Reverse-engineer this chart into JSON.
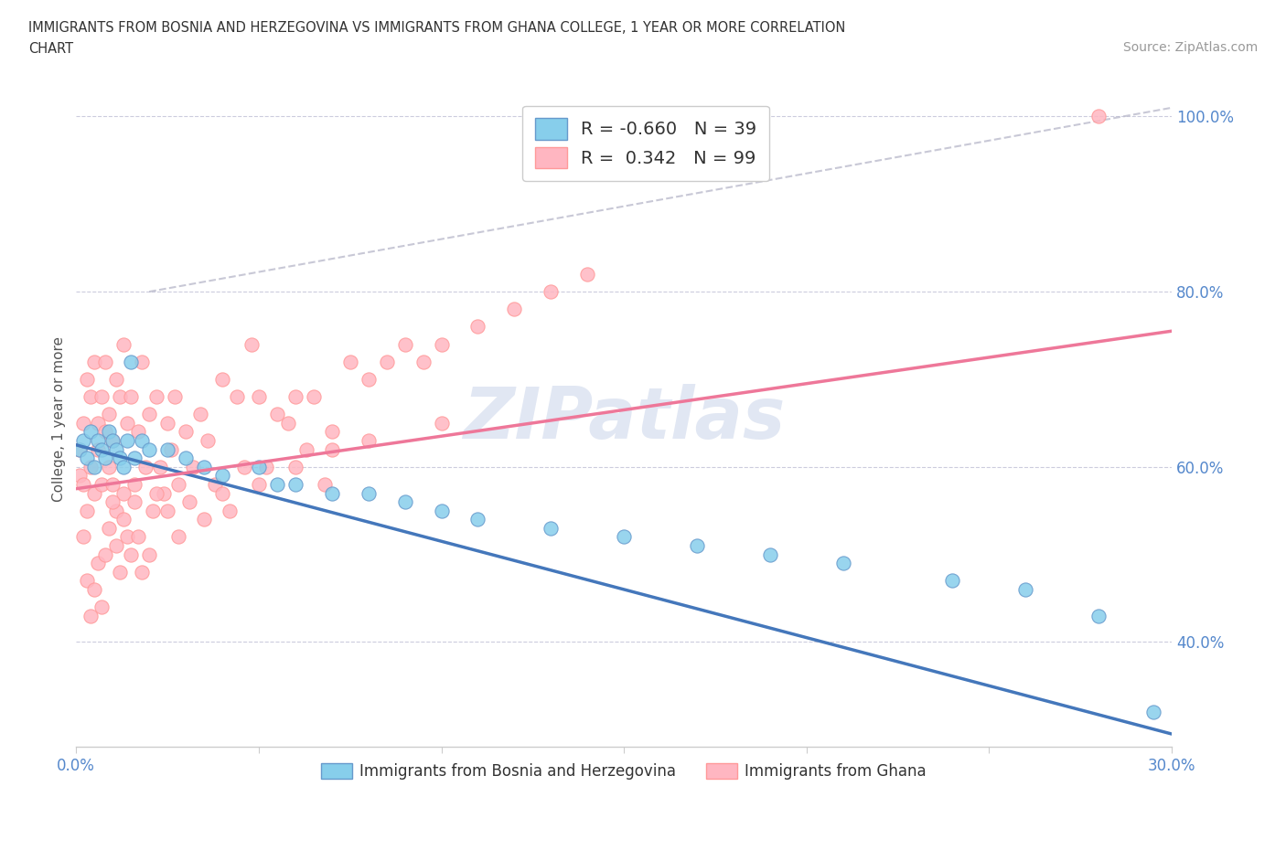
{
  "title_line1": "IMMIGRANTS FROM BOSNIA AND HERZEGOVINA VS IMMIGRANTS FROM GHANA COLLEGE, 1 YEAR OR MORE CORRELATION",
  "title_line2": "CHART",
  "source": "Source: ZipAtlas.com",
  "ylabel": "College, 1 year or more",
  "xmin": 0.0,
  "xmax": 0.3,
  "ymin": 0.28,
  "ymax": 1.03,
  "xtick_pos": [
    0.0,
    0.05,
    0.1,
    0.15,
    0.2,
    0.25,
    0.3
  ],
  "xtick_labels": [
    "0.0%",
    "",
    "",
    "",
    "",
    "",
    "30.0%"
  ],
  "ytick_labels": [
    "40.0%",
    "60.0%",
    "80.0%",
    "100.0%"
  ],
  "ytick_positions": [
    0.4,
    0.6,
    0.8,
    1.0
  ],
  "watermark": "ZIPatlas",
  "r_bosnia": -0.66,
  "n_bosnia": 39,
  "r_ghana": 0.342,
  "n_ghana": 99,
  "color_bosnia": "#87CEEB",
  "color_ghana": "#FFB6C1",
  "color_bosnia_line": "#4477BB",
  "color_ghana_line": "#EE7799",
  "color_ghana_dark": "#FF9999",
  "color_bosnia_dark": "#6699CC",
  "bosnia_x": [
    0.001,
    0.002,
    0.003,
    0.004,
    0.005,
    0.006,
    0.007,
    0.008,
    0.009,
    0.01,
    0.011,
    0.012,
    0.013,
    0.014,
    0.015,
    0.016,
    0.018,
    0.02,
    0.025,
    0.03,
    0.035,
    0.04,
    0.05,
    0.055,
    0.06,
    0.07,
    0.08,
    0.09,
    0.1,
    0.11,
    0.13,
    0.15,
    0.17,
    0.19,
    0.21,
    0.24,
    0.26,
    0.28,
    0.295
  ],
  "bosnia_y": [
    0.62,
    0.63,
    0.61,
    0.64,
    0.6,
    0.63,
    0.62,
    0.61,
    0.64,
    0.63,
    0.62,
    0.61,
    0.6,
    0.63,
    0.72,
    0.61,
    0.63,
    0.62,
    0.62,
    0.61,
    0.6,
    0.59,
    0.6,
    0.58,
    0.58,
    0.57,
    0.57,
    0.56,
    0.55,
    0.54,
    0.53,
    0.52,
    0.51,
    0.5,
    0.49,
    0.47,
    0.46,
    0.43,
    0.32
  ],
  "ghana_x": [
    0.001,
    0.001,
    0.002,
    0.002,
    0.003,
    0.003,
    0.004,
    0.004,
    0.005,
    0.005,
    0.006,
    0.006,
    0.007,
    0.007,
    0.008,
    0.008,
    0.009,
    0.009,
    0.01,
    0.01,
    0.011,
    0.011,
    0.012,
    0.013,
    0.013,
    0.014,
    0.015,
    0.016,
    0.017,
    0.018,
    0.019,
    0.02,
    0.021,
    0.022,
    0.023,
    0.024,
    0.025,
    0.026,
    0.027,
    0.028,
    0.03,
    0.032,
    0.034,
    0.036,
    0.038,
    0.04,
    0.042,
    0.044,
    0.046,
    0.048,
    0.05,
    0.052,
    0.055,
    0.058,
    0.06,
    0.063,
    0.065,
    0.068,
    0.07,
    0.075,
    0.08,
    0.085,
    0.09,
    0.095,
    0.1,
    0.11,
    0.12,
    0.13,
    0.14,
    0.002,
    0.003,
    0.004,
    0.005,
    0.006,
    0.007,
    0.008,
    0.009,
    0.01,
    0.011,
    0.012,
    0.013,
    0.014,
    0.015,
    0.016,
    0.017,
    0.018,
    0.02,
    0.022,
    0.025,
    0.028,
    0.031,
    0.035,
    0.04,
    0.05,
    0.06,
    0.07,
    0.08,
    0.1,
    0.28
  ],
  "ghana_y": [
    0.62,
    0.59,
    0.65,
    0.58,
    0.7,
    0.55,
    0.68,
    0.6,
    0.72,
    0.57,
    0.65,
    0.62,
    0.68,
    0.58,
    0.64,
    0.72,
    0.6,
    0.66,
    0.63,
    0.58,
    0.7,
    0.55,
    0.68,
    0.74,
    0.57,
    0.65,
    0.68,
    0.58,
    0.64,
    0.72,
    0.6,
    0.66,
    0.55,
    0.68,
    0.6,
    0.57,
    0.65,
    0.62,
    0.68,
    0.58,
    0.64,
    0.6,
    0.66,
    0.63,
    0.58,
    0.7,
    0.55,
    0.68,
    0.6,
    0.74,
    0.68,
    0.6,
    0.66,
    0.65,
    0.68,
    0.62,
    0.68,
    0.58,
    0.64,
    0.72,
    0.7,
    0.72,
    0.74,
    0.72,
    0.74,
    0.76,
    0.78,
    0.8,
    0.82,
    0.52,
    0.47,
    0.43,
    0.46,
    0.49,
    0.44,
    0.5,
    0.53,
    0.56,
    0.51,
    0.48,
    0.54,
    0.52,
    0.5,
    0.56,
    0.52,
    0.48,
    0.5,
    0.57,
    0.55,
    0.52,
    0.56,
    0.54,
    0.57,
    0.58,
    0.6,
    0.62,
    0.63,
    0.65,
    1.0
  ],
  "bosnia_line_x": [
    0.0,
    0.3
  ],
  "bosnia_line_y": [
    0.625,
    0.295
  ],
  "ghana_line_x": [
    0.0,
    0.3
  ],
  "ghana_line_y": [
    0.575,
    0.755
  ],
  "dash_line_x": [
    0.02,
    0.3
  ],
  "dash_line_y": [
    0.8,
    1.01
  ]
}
